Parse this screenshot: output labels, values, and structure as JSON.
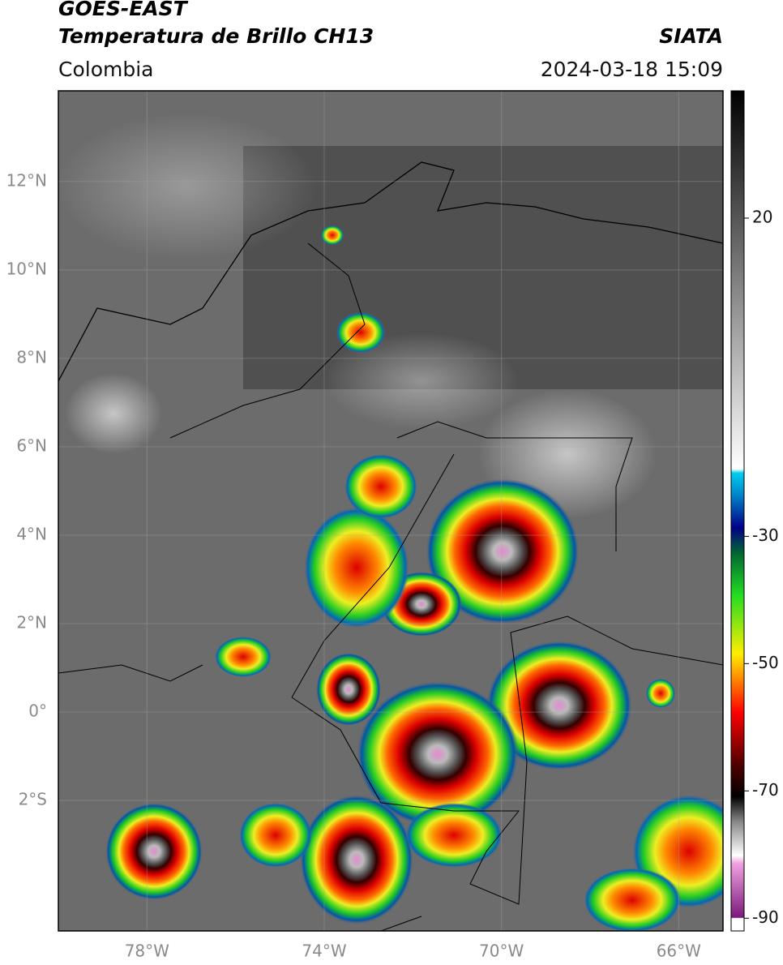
{
  "header": {
    "title": "GOES-EAST",
    "subtitle": "Temperatura de Brillo CH13",
    "source": "SIATA",
    "region": "Colombia",
    "datetime": "2024-03-18 15:09"
  },
  "map": {
    "lat_range": [
      -4.95,
      14.05
    ],
    "lon_range": [
      -80,
      -65
    ],
    "lat_ticks": [
      {
        "value": 12,
        "label": "12°N"
      },
      {
        "value": 10,
        "label": "10°N"
      },
      {
        "value": 8,
        "label": "8°N"
      },
      {
        "value": 6,
        "label": "6°N"
      },
      {
        "value": 4,
        "label": "4°N"
      },
      {
        "value": 2,
        "label": "2°N"
      },
      {
        "value": 0,
        "label": "0°"
      },
      {
        "value": -2,
        "label": "2°S"
      }
    ],
    "lon_ticks": [
      {
        "value": -78,
        "label": "78°W"
      },
      {
        "value": -74,
        "label": "74°W"
      },
      {
        "value": -70,
        "label": "70°W"
      },
      {
        "value": -66,
        "label": "66°W"
      }
    ]
  },
  "colorbar": {
    "range": [
      -92,
      40
    ],
    "ticks": [
      20,
      -30,
      -50,
      -70,
      -90
    ]
  }
}
